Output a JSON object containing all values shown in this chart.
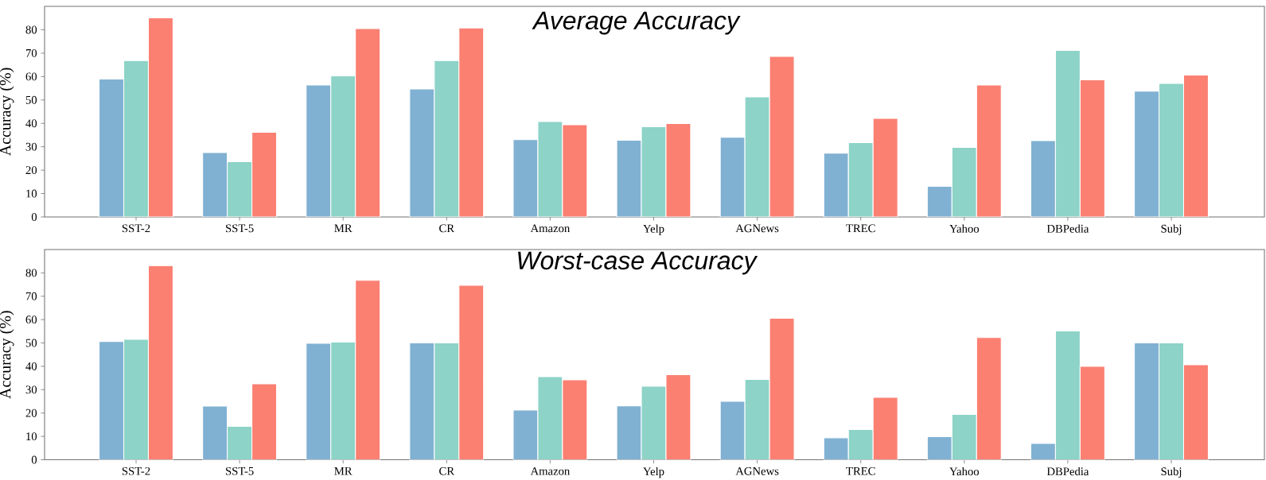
{
  "chart_data": [
    {
      "type": "bar",
      "title": "Average Accuracy",
      "ylabel": "Accuracy (%)",
      "categories": [
        "SST-2",
        "SST-5",
        "MR",
        "CR",
        "Amazon",
        "Yelp",
        "AGNews",
        "TREC",
        "Yahoo",
        "DBPedia",
        "Subj"
      ],
      "series": [
        {
          "color": "#80b1d3",
          "values": [
            58.9,
            27.5,
            56.4,
            54.7,
            33.0,
            32.8,
            34.1,
            27.3,
            13.1,
            32.6,
            53.8
          ]
        },
        {
          "color": "#8dd3c7",
          "values": [
            66.8,
            23.6,
            60.3,
            66.8,
            40.8,
            38.6,
            51.3,
            31.8,
            29.7,
            71.2,
            57.1
          ]
        },
        {
          "color": "#fb8072",
          "values": [
            85.1,
            36.2,
            80.5,
            80.8,
            39.4,
            39.9,
            68.6,
            42.1,
            56.4,
            58.6,
            60.6
          ]
        }
      ],
      "ylim": [
        0,
        90
      ],
      "yticks": [
        0,
        10,
        20,
        30,
        40,
        50,
        60,
        70,
        80
      ]
    },
    {
      "type": "bar",
      "title": "Worst-case Accuracy",
      "ylabel": "Accuracy (%)",
      "categories": [
        "SST-2",
        "SST-5",
        "MR",
        "CR",
        "Amazon",
        "Yelp",
        "AGNews",
        "TREC",
        "Yahoo",
        "DBPedia",
        "Subj"
      ],
      "series": [
        {
          "color": "#80b1d3",
          "values": [
            50.6,
            23.0,
            49.9,
            50.0,
            21.3,
            23.1,
            25.0,
            9.4,
            9.9,
            7.0,
            50.0
          ]
        },
        {
          "color": "#8dd3c7",
          "values": [
            51.6,
            14.3,
            50.4,
            50.0,
            35.6,
            31.5,
            34.4,
            12.9,
            19.4,
            55.1,
            50.0
          ]
        },
        {
          "color": "#fb8072",
          "values": [
            83.1,
            32.5,
            76.8,
            74.7,
            34.2,
            36.4,
            60.6,
            26.7,
            52.3,
            40.0,
            40.7
          ]
        }
      ],
      "ylim": [
        0,
        90
      ],
      "yticks": [
        0,
        10,
        20,
        30,
        40,
        50,
        60,
        70,
        80
      ]
    }
  ]
}
